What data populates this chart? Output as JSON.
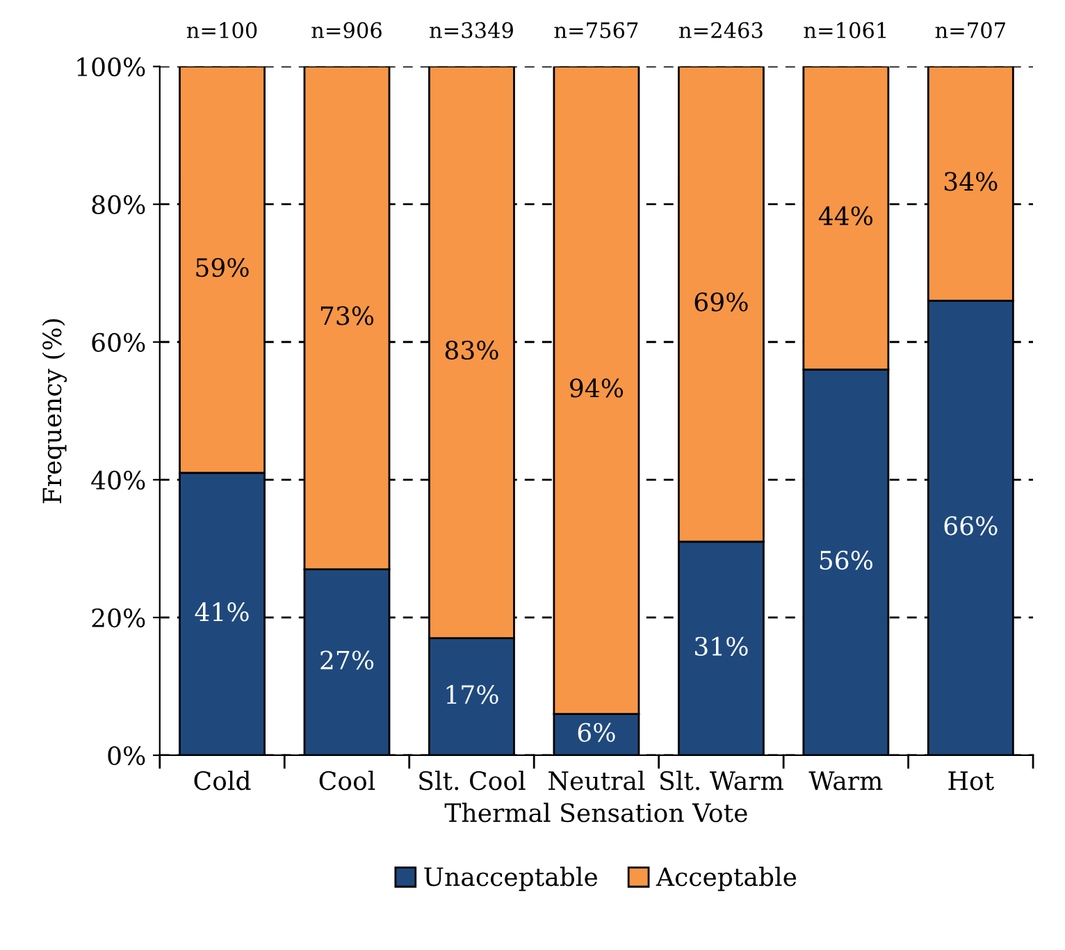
{
  "chart_data": {
    "type": "bar",
    "stacked": true,
    "xlabel": "Thermal Sensation Vote",
    "ylabel": "Frequency (%)",
    "categories": [
      "Cold",
      "Cool",
      "Slt. Cool",
      "Neutral",
      "Slt. Warm",
      "Warm",
      "Hot"
    ],
    "series": [
      {
        "name": "Unacceptable",
        "color": "#1f497d",
        "values": [
          41,
          27,
          17,
          6,
          31,
          56,
          66
        ],
        "value_labels": [
          "41%",
          "27%",
          "17%",
          "6%",
          "31%",
          "56%",
          "66%"
        ]
      },
      {
        "name": "Acceptable",
        "color": "#f79646",
        "values": [
          59,
          73,
          83,
          94,
          69,
          44,
          34
        ],
        "value_labels": [
          "59%",
          "73%",
          "83%",
          "94%",
          "69%",
          "44%",
          "34%"
        ]
      }
    ],
    "ylim": [
      0,
      100
    ],
    "yticks": [
      {
        "value": 0,
        "label": "0%"
      },
      {
        "value": 20,
        "label": "20%"
      },
      {
        "value": 40,
        "label": "40%"
      },
      {
        "value": 60,
        "label": "60%"
      },
      {
        "value": 80,
        "label": "80%"
      },
      {
        "value": 100,
        "label": "100%"
      }
    ],
    "grid": "y",
    "legend": "bottom",
    "annotations": [
      "n=100",
      "n=906",
      "n=3349",
      "n=7567",
      "n=2463",
      "n=1061",
      "n=707"
    ]
  }
}
